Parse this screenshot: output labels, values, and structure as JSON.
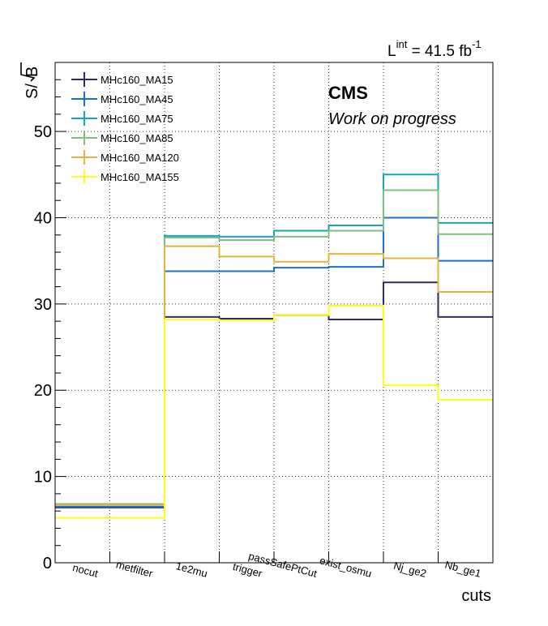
{
  "chart_data": {
    "type": "line",
    "step": true,
    "categories": [
      "nocut",
      "metfilter",
      "1e2mu",
      "trigger",
      "passSafePtCut",
      "exist_osmu",
      "Nj_ge2",
      "Nb_ge1"
    ],
    "xlabel": "cuts",
    "ylabel": "S/√B",
    "ylabel_prefix": "S/",
    "ylabel_radicand": "B",
    "ylim": [
      0,
      58
    ],
    "yticks": [
      0,
      10,
      20,
      30,
      40,
      50
    ],
    "grid": true,
    "legend_position": "top-left",
    "series": [
      {
        "name": "MHc160_MA15",
        "color": "#2e2a6e",
        "values": [
          6.4,
          6.4,
          28.5,
          28.3,
          28.7,
          28.2,
          32.5,
          28.5
        ]
      },
      {
        "name": "MHc160_MA45",
        "color": "#1c6fd0",
        "values": [
          6.5,
          6.5,
          33.8,
          33.8,
          34.2,
          34.3,
          40.0,
          35.0
        ]
      },
      {
        "name": "MHc160_MA75",
        "color": "#16a6b8",
        "values": [
          6.8,
          6.8,
          37.9,
          37.8,
          38.5,
          39.1,
          45.0,
          39.4
        ]
      },
      {
        "name": "MHc160_MA85",
        "color": "#7cc07c",
        "values": [
          6.8,
          6.8,
          37.7,
          37.4,
          37.8,
          38.5,
          43.2,
          38.1
        ]
      },
      {
        "name": "MHc160_MA120",
        "color": "#e3b33f",
        "values": [
          6.7,
          6.7,
          36.7,
          35.5,
          34.9,
          35.8,
          35.3,
          31.4
        ]
      },
      {
        "name": "MHc160_MA155",
        "color": "#ffff11",
        "values": [
          5.2,
          5.2,
          28.2,
          28.1,
          28.7,
          29.8,
          20.6,
          18.9
        ]
      }
    ]
  },
  "annotations": {
    "experiment": "CMS",
    "status": "Work on progress",
    "lumi_prefix": "L",
    "lumi_superscript": "int",
    "lumi_value": " = 41.5 fb",
    "lumi_exponent": "-1"
  }
}
